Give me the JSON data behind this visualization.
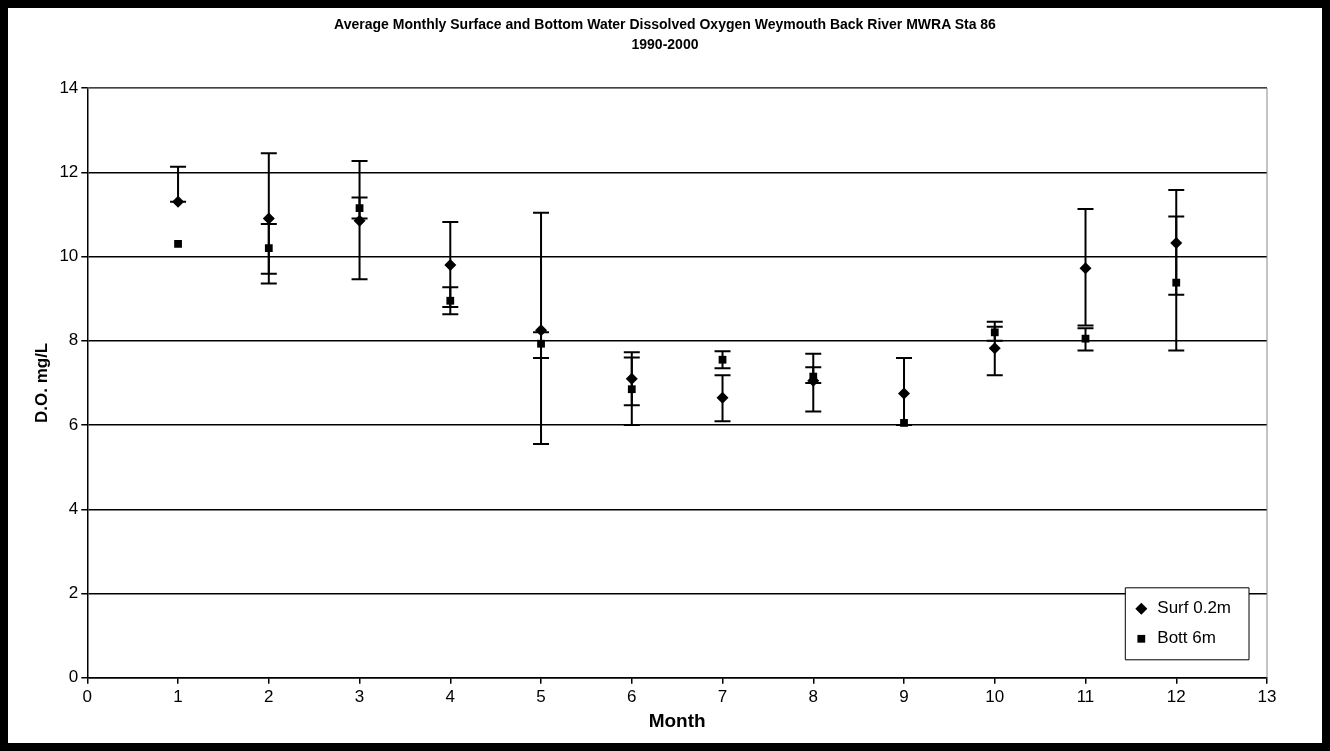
{
  "chart_data": {
    "type": "scatter",
    "title": "Average Monthly Surface and Bottom Water Dissolved Oxygen Weymouth Back River MWRA Sta 86",
    "subtitle": "1990-2000",
    "xlabel": "Month",
    "ylabel": "D.O. mg/L",
    "x": [
      1,
      2,
      3,
      4,
      5,
      6,
      7,
      8,
      9,
      10,
      11,
      12
    ],
    "series": [
      {
        "name": "Surf 0.2m",
        "color": "#000000",
        "marker": "diamond",
        "values": [
          11.3,
          10.9,
          10.85,
          9.8,
          8.25,
          7.1,
          6.65,
          7.05,
          6.75,
          7.82,
          9.72,
          10.32
        ],
        "errors": [
          [
            11.3,
            12.13
          ],
          [
            9.36,
            12.45
          ],
          [
            9.46,
            12.27
          ],
          [
            8.8,
            10.82
          ],
          [
            5.55,
            11.04
          ],
          [
            6.47,
            7.73
          ],
          [
            6.09,
            7.18
          ],
          [
            6.32,
            7.69
          ],
          [
            6.0,
            7.59
          ],
          [
            7.18,
            8.45
          ],
          [
            8.36,
            11.13
          ],
          [
            9.09,
            11.58
          ]
        ]
      },
      {
        "name": "Bott 6m",
        "color": "#000000",
        "marker": "square",
        "values": [
          10.3,
          10.2,
          11.15,
          8.95,
          7.93,
          6.85,
          7.55,
          7.15,
          6.05,
          8.2,
          8.05,
          9.38
        ],
        "errors": [
          null,
          [
            9.59,
            10.77
          ],
          [
            10.9,
            11.4
          ],
          [
            8.63,
            9.27
          ],
          [
            7.59,
            8.2
          ],
          [
            6.0,
            7.6
          ],
          [
            7.35,
            7.75
          ],
          [
            7.0,
            7.37
          ],
          null,
          [
            8.0,
            8.33
          ],
          [
            7.77,
            8.3
          ],
          [
            7.77,
            10.95
          ]
        ]
      }
    ],
    "xlim": [
      0,
      13
    ],
    "xticks": [
      0,
      1,
      2,
      3,
      4,
      5,
      6,
      7,
      8,
      9,
      10,
      11,
      12,
      13
    ],
    "ylim": [
      0,
      14
    ],
    "yticks": [
      0,
      2,
      4,
      6,
      8,
      10,
      12,
      14
    ],
    "grid": "y",
    "legend": "bottom right"
  }
}
